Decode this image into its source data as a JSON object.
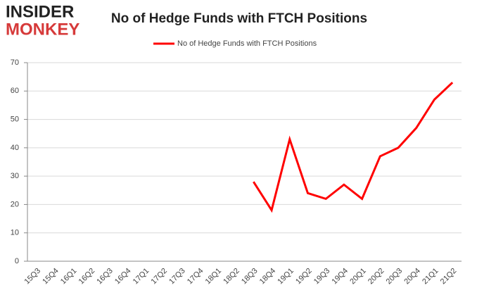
{
  "logo": {
    "line1": "INSIDER",
    "line2": "MONKEY"
  },
  "chart_data": {
    "type": "line",
    "title": "No of Hedge Funds with FTCH Positions",
    "categories": [
      "15Q3",
      "15Q4",
      "16Q1",
      "16Q2",
      "16Q3",
      "16Q4",
      "17Q1",
      "17Q2",
      "17Q3",
      "17Q4",
      "18Q1",
      "18Q2",
      "18Q3",
      "18Q4",
      "19Q1",
      "19Q2",
      "19Q3",
      "19Q4",
      "20Q1",
      "20Q2",
      "20Q3",
      "20Q4",
      "21Q1",
      "21Q2"
    ],
    "series": [
      {
        "name": "No of Hedge Funds with FTCH Positions",
        "color": "#ff0000",
        "values": [
          null,
          null,
          null,
          null,
          null,
          null,
          null,
          null,
          null,
          null,
          null,
          null,
          28,
          18,
          43,
          24,
          22,
          27,
          22,
          37,
          40,
          47,
          57,
          63
        ]
      }
    ],
    "ylim": [
      0,
      70
    ],
    "yticks": [
      0,
      10,
      20,
      30,
      40,
      50,
      60,
      70
    ],
    "grid": true,
    "legend": "top"
  }
}
